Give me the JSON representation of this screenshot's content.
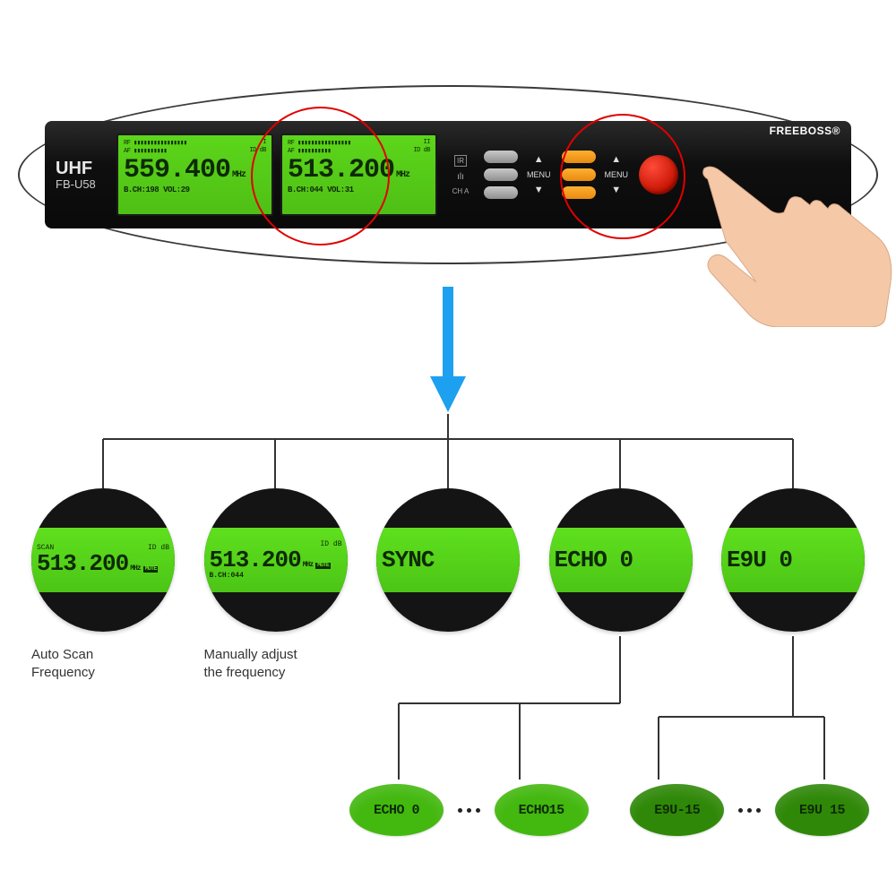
{
  "panel": {
    "brand": "FREEBOSS®",
    "model_line1": "UHF",
    "model_line2": "FB-U58",
    "ir_label": "IR",
    "ch_label": "CH A",
    "menu_label": "MENU",
    "up_glyph": "▲",
    "down_glyph": "▼",
    "lcd_left": {
      "rf": "RF ▮▮▮▮▮▮▮▮▮▮▮▮▮▮▮▮",
      "rf_right": "I",
      "af": "AF ▮▮▮▮▮▮▮▮▮▮",
      "af_right": "ID  dB",
      "freq": "559.400",
      "unit": "MHz",
      "bottom": "B.CH:198 VOL:29"
    },
    "lcd_right": {
      "rf": "RF ▮▮▮▮▮▮▮▮▮▮▮▮▮▮▮▮",
      "rf_right": "II",
      "af": "AF ▮▮▮▮▮▮▮▮▮▮",
      "af_right": "ID  dB",
      "freq": "513.200",
      "unit": "MHz",
      "bottom": "B.CH:044 VOL:31"
    }
  },
  "circles": {
    "colors": {
      "red": "#e00000",
      "outline": "#3a3a3a"
    }
  },
  "arrow_color": "#1ea0f0",
  "tree_color": "#333333",
  "displays": [
    {
      "top_left": "SCAN",
      "top_right": "ID  dB",
      "big": "513.200",
      "unit": "MHz",
      "mute": "MUTE",
      "bch": "",
      "caption": "Auto Scan\nFrequency"
    },
    {
      "top_left": "",
      "top_right": "ID  dB",
      "big": "513.200",
      "unit": "MHz",
      "mute": "MUTE",
      "bch": "B.CH:044",
      "caption": "Manually adjust\nthe frequency"
    },
    {
      "top_left": "",
      "top_right": "",
      "big": "SYNC",
      "unit": "",
      "mute": "",
      "bch": "",
      "caption": ""
    },
    {
      "top_left": "",
      "top_right": "",
      "big": "ECHO 0",
      "unit": "",
      "mute": "",
      "bch": "",
      "caption": ""
    },
    {
      "top_left": "",
      "top_right": "",
      "big": "E9U  0",
      "unit": "",
      "mute": "",
      "bch": "",
      "caption": ""
    }
  ],
  "minis": [
    {
      "label": "ECHO 0",
      "dark": false
    },
    {
      "label": "ECHO15",
      "dark": false
    },
    {
      "label": "E9U-15",
      "dark": true
    },
    {
      "label": "E9U 15",
      "dark": true
    }
  ],
  "green": "#5cd61a",
  "green_dark": "#0e2a05",
  "hand_skin": "#f5c9a8"
}
